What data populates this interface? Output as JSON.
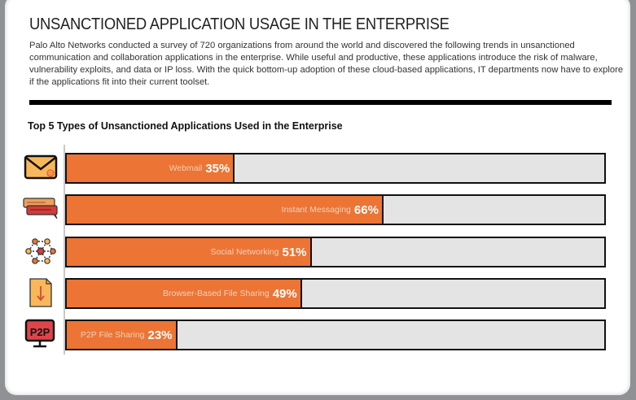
{
  "title": "UNSANCTIONED APPLICATION USAGE IN THE ENTERPRISE",
  "intro": "Palo Alto Networks conducted a survey of 720 organizations from around the world and discovered the following trends in unsanctioned communication and collaboration applications in the enterprise. While useful and productive, these applications introduce the risk of malware, vulnerability exploits, and data or IP loss.  With the quick bottom-up adoption of these cloud-based applications, IT departments now have to explore if the applications fit into their current toolset.",
  "chart_data": {
    "type": "bar",
    "orientation": "horizontal",
    "title": "Top 5 Types of Unsanctioned Applications Used in the Enterprise",
    "categories": [
      "Webmail",
      "Instant Messaging",
      "Social Networking",
      "Browser-Based File Sharing",
      "P2P File Sharing"
    ],
    "values": [
      35,
      66,
      51,
      49,
      23
    ],
    "value_labels": [
      "35%",
      "66%",
      "51%",
      "49%",
      "23%"
    ],
    "icons": [
      "envelope-icon",
      "chat-bubbles-icon",
      "social-network-icon",
      "file-download-icon",
      "p2p-monitor-icon"
    ],
    "xlim": [
      0,
      112
    ],
    "grid": false,
    "colors": {
      "fill": "#ec7434",
      "track": "#e4e4e4",
      "border": "#111111"
    }
  }
}
